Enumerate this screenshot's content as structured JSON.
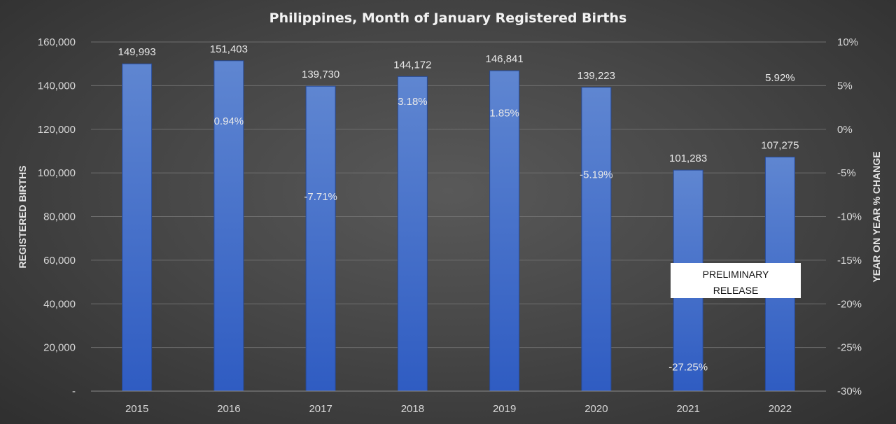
{
  "chart_data": {
    "type": "bar",
    "title": "Philippines, Month of January Registered Births",
    "ylabel": "REGISTERED BIRTHS",
    "y2label": "YEAR ON YEAR % CHANGE",
    "categories": [
      "2015",
      "2016",
      "2017",
      "2018",
      "2019",
      "2020",
      "2021",
      "2022"
    ],
    "series": [
      {
        "values": [
          149993,
          151403,
          139730,
          144172,
          146841,
          139223,
          101283,
          107275
        ],
        "labels": [
          "149,993",
          "151,403",
          "139,730",
          "144,172",
          "146,841",
          "139,223",
          "101,283",
          "107,275"
        ]
      },
      {
        "axis": "secondary",
        "values": [
          null,
          0.94,
          -7.71,
          3.18,
          1.85,
          -5.19,
          -27.25,
          5.92
        ],
        "labels": [
          "",
          "0.94%",
          "-7.71%",
          "3.18%",
          "1.85%",
          "-5.19%",
          "-27.25%",
          "5.92%"
        ]
      }
    ],
    "ylim": [
      0,
      160000
    ],
    "y2lim": [
      -30,
      10
    ],
    "yticks": [
      "-",
      "20,000",
      "40,000",
      "60,000",
      "80,000",
      "100,000",
      "120,000",
      "140,000",
      "160,000"
    ],
    "y2ticks": [
      "-30%",
      "-25%",
      "-20%",
      "-15%",
      "-10%",
      "-5%",
      "0%",
      "5%",
      "10%"
    ],
    "grid": true,
    "bar_color": "#4472c4",
    "annotation": [
      "PRELIMINARY",
      "RELEASE"
    ]
  }
}
